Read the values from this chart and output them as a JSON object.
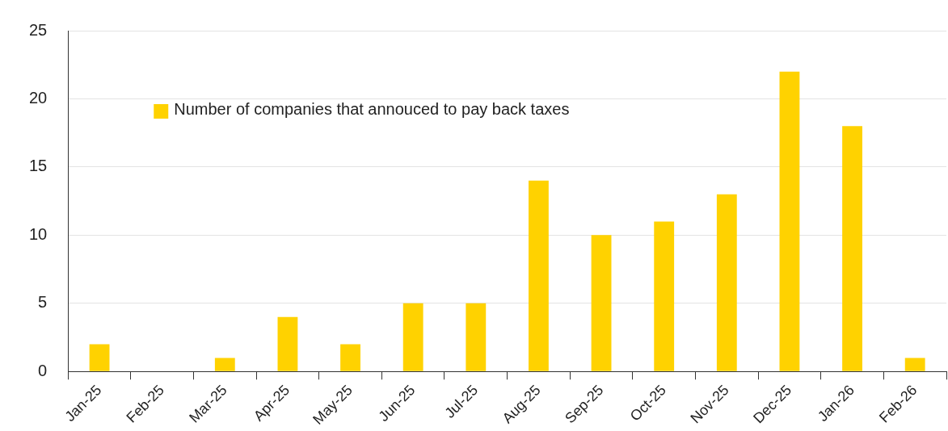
{
  "chart_data": {
    "type": "bar",
    "categories": [
      "Jan-25",
      "Feb-25",
      "Mar-25",
      "Apr-25",
      "May-25",
      "Jun-25",
      "Jul-25",
      "Aug-25",
      "Sep-25",
      "Oct-25",
      "Nov-25",
      "Dec-25",
      "Jan-26",
      "Feb-26"
    ],
    "series": [
      {
        "name": "Number of companies that annouced to pay back taxes",
        "color": "#ffd200",
        "values": [
          2,
          0,
          1,
          4,
          2,
          5,
          5,
          14,
          10,
          11,
          13,
          22,
          18,
          1
        ]
      }
    ],
    "ylim": [
      0,
      25
    ],
    "yticks": [
      0,
      5,
      10,
      15,
      20,
      25
    ],
    "grid": "y",
    "legend": "top left"
  }
}
